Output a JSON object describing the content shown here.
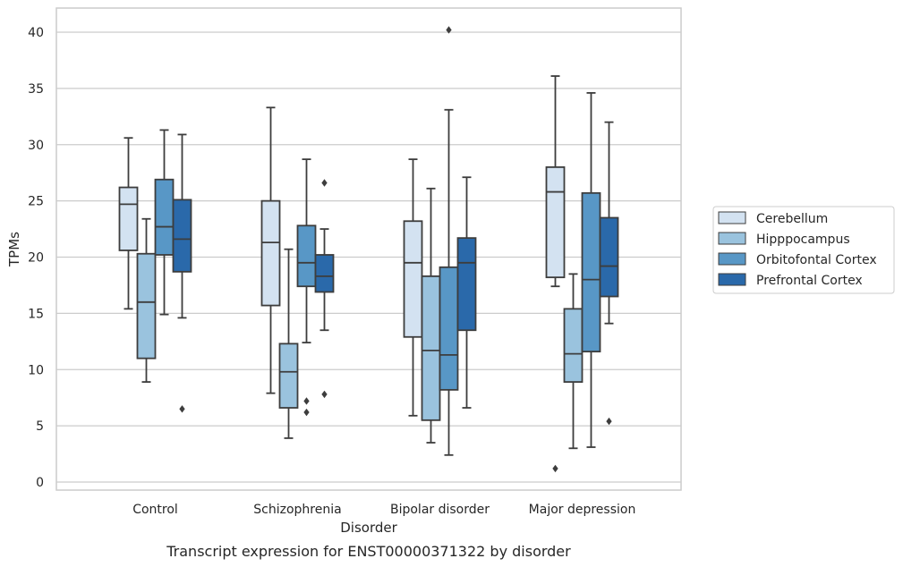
{
  "chart_data": {
    "type": "box",
    "title": "Transcript expression for ENST00000371322 by disorder",
    "xlabel": "Disorder",
    "ylabel": "TPMs",
    "ylim": [
      -0.6,
      42.2
    ],
    "yticks": [
      0,
      5,
      10,
      15,
      20,
      25,
      30,
      35,
      40
    ],
    "grid": true,
    "legend_position": "right",
    "categories": [
      "Control",
      "Schizophrenia",
      "Bipolar disorder",
      "Major depression"
    ],
    "series": [
      {
        "name": "Cerebellum",
        "color": "#d3e2f1",
        "boxes": [
          {
            "whisker_low": 15.4,
            "q1": 20.6,
            "median": 24.7,
            "q3": 26.2,
            "whisker_high": 30.6,
            "outliers": []
          },
          {
            "whisker_low": 7.9,
            "q1": 15.7,
            "median": 21.3,
            "q3": 25.0,
            "whisker_high": 33.3,
            "outliers": []
          },
          {
            "whisker_low": 5.9,
            "q1": 12.9,
            "median": 19.5,
            "q3": 23.2,
            "whisker_high": 28.7,
            "outliers": []
          },
          {
            "whisker_low": 17.4,
            "q1": 18.2,
            "median": 25.8,
            "q3": 28.0,
            "whisker_high": 36.1,
            "outliers": [
              1.2
            ]
          }
        ]
      },
      {
        "name": "Hipppocampus",
        "color": "#9ac3de",
        "boxes": [
          {
            "whisker_low": 8.9,
            "q1": 11.0,
            "median": 16.0,
            "q3": 20.3,
            "whisker_high": 23.4,
            "outliers": []
          },
          {
            "whisker_low": 3.9,
            "q1": 6.6,
            "median": 9.8,
            "q3": 12.3,
            "whisker_high": 20.7,
            "outliers": []
          },
          {
            "whisker_low": 3.5,
            "q1": 5.5,
            "median": 11.7,
            "q3": 18.3,
            "whisker_high": 26.1,
            "outliers": []
          },
          {
            "whisker_low": 3.0,
            "q1": 8.9,
            "median": 11.4,
            "q3": 15.4,
            "whisker_high": 18.5,
            "outliers": []
          }
        ]
      },
      {
        "name": "Orbitofontal Cortex",
        "color": "#5897c6",
        "boxes": [
          {
            "whisker_low": 14.9,
            "q1": 20.2,
            "median": 22.7,
            "q3": 26.9,
            "whisker_high": 31.3,
            "outliers": []
          },
          {
            "whisker_low": 12.4,
            "q1": 17.4,
            "median": 19.5,
            "q3": 22.8,
            "whisker_high": 28.7,
            "outliers": [
              7.2,
              6.2
            ]
          },
          {
            "whisker_low": 2.4,
            "q1": 8.2,
            "median": 11.3,
            "q3": 19.1,
            "whisker_high": 33.1,
            "outliers": [
              40.2
            ]
          },
          {
            "whisker_low": 3.1,
            "q1": 11.6,
            "median": 18.0,
            "q3": 25.7,
            "whisker_high": 34.6,
            "outliers": []
          }
        ]
      },
      {
        "name": "Prefrontal Cortex",
        "color": "#2a69aa",
        "boxes": [
          {
            "whisker_low": 14.6,
            "q1": 18.7,
            "median": 21.6,
            "q3": 25.1,
            "whisker_high": 30.9,
            "outliers": [
              6.5
            ]
          },
          {
            "whisker_low": 13.5,
            "q1": 16.9,
            "median": 18.3,
            "q3": 20.2,
            "whisker_high": 22.5,
            "outliers": [
              26.6,
              7.8
            ]
          },
          {
            "whisker_low": 6.6,
            "q1": 13.5,
            "median": 19.5,
            "q3": 21.7,
            "whisker_high": 27.1,
            "outliers": []
          },
          {
            "whisker_low": 14.1,
            "q1": 16.5,
            "median": 19.2,
            "q3": 23.5,
            "whisker_high": 32.0,
            "outliers": [
              5.4
            ]
          }
        ]
      }
    ]
  }
}
